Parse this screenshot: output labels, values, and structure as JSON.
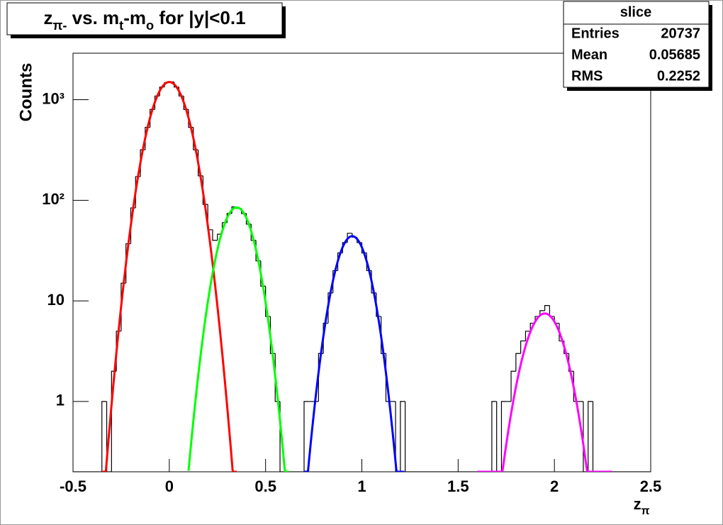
{
  "chart_data": {
    "type": "histogram",
    "title": [
      {
        "text": "z"
      },
      {
        "text": "π-",
        "sub": true
      },
      {
        "text": " vs. m"
      },
      {
        "text": "t",
        "sub": true
      },
      {
        "text": "-m"
      },
      {
        "text": "o",
        "sub": true
      },
      {
        "text": " for |y|<0.1"
      }
    ],
    "x_label": [
      {
        "text": "z"
      },
      {
        "text": "π",
        "sub": true
      }
    ],
    "y_label": "Counts",
    "log_y": true,
    "color": "#000000",
    "xlim": [
      -0.5,
      2.5
    ],
    "xticks": [
      -0.5,
      0,
      0.5,
      1,
      1.5,
      2,
      2.5
    ],
    "ylim": [
      0.2,
      2900
    ],
    "yticks": [
      1,
      10,
      {
        "value": 100,
        "label": "10²"
      },
      {
        "value": 1000,
        "label": "10³"
      }
    ],
    "bins": [
      -0.5,
      -0.475,
      -0.45,
      -0.425,
      -0.4,
      -0.375,
      -0.35,
      -0.325,
      -0.3,
      -0.275,
      -0.25,
      -0.225,
      -0.2,
      -0.175,
      -0.15,
      -0.125,
      -0.1,
      -0.075,
      -0.05,
      -0.025,
      0,
      0.025,
      0.05,
      0.075,
      0.1,
      0.125,
      0.15,
      0.175,
      0.2,
      0.225,
      0.25,
      0.275,
      0.3,
      0.325,
      0.35,
      0.375,
      0.4,
      0.425,
      0.45,
      0.475,
      0.5,
      0.525,
      0.55,
      0.575,
      0.6,
      0.625,
      0.65,
      0.675,
      0.7,
      0.725,
      0.75,
      0.775,
      0.8,
      0.825,
      0.85,
      0.875,
      0.9,
      0.925,
      0.95,
      0.975,
      1,
      1.025,
      1.05,
      1.075,
      1.1,
      1.125,
      1.15,
      1.175,
      1.2,
      1.225,
      1.25,
      1.275,
      1.3,
      1.325,
      1.35,
      1.375,
      1.4,
      1.425,
      1.45,
      1.475,
      1.5,
      1.525,
      1.55,
      1.575,
      1.6,
      1.625,
      1.65,
      1.675,
      1.7,
      1.725,
      1.75,
      1.775,
      1.8,
      1.825,
      1.85,
      1.875,
      1.9,
      1.925,
      1.95,
      1.975,
      2,
      2.025,
      2.05,
      2.075,
      2.1,
      2.125,
      2.15,
      2.175,
      2.2,
      2.225,
      2.25,
      2.275,
      2.3,
      2.325,
      2.35,
      2.375,
      2.4,
      2.425,
      2.45,
      2.475,
      2.5
    ],
    "values": [
      0,
      0,
      0,
      0,
      0,
      0,
      1,
      0,
      2,
      5,
      15,
      37,
      84,
      172,
      318,
      531,
      801,
      1089,
      1337,
      1481,
      1502,
      1337,
      1089,
      801,
      531,
      318,
      175,
      91,
      51,
      40,
      46,
      60,
      74,
      86,
      83,
      74,
      58,
      40,
      25,
      14,
      7,
      3,
      1,
      0,
      0,
      0,
      0,
      0,
      1,
      1,
      1,
      3,
      6,
      12,
      20,
      30,
      38,
      47,
      43,
      38,
      30,
      20,
      12,
      7,
      3,
      1,
      1,
      0,
      1,
      0,
      0,
      0,
      0,
      0,
      0,
      0,
      0,
      0,
      0,
      0,
      0,
      0,
      0,
      0,
      0,
      0,
      0,
      1,
      0,
      1,
      1,
      2,
      3,
      4,
      5,
      6,
      7,
      8,
      9,
      7,
      6,
      4,
      3,
      2,
      1,
      1,
      0,
      1,
      0,
      0,
      0,
      0,
      0,
      0,
      0,
      0,
      0,
      0,
      0,
      0
    ],
    "fits": [
      {
        "color": "#ff0000",
        "constant": 1500,
        "mean": 0,
        "sigma": 0.078,
        "range": [
          -0.35,
          0.35
        ]
      },
      {
        "color": "#00ff00",
        "constant": 85,
        "mean": 0.35,
        "sigma": 0.072,
        "range": [
          0.1,
          0.62
        ]
      },
      {
        "color": "#0000ff",
        "constant": 44,
        "mean": 0.95,
        "sigma": 0.07,
        "range": [
          0.7,
          1.22
        ]
      },
      {
        "color": "#ff00ff",
        "constant": 7.5,
        "mean": 1.95,
        "sigma": 0.0817,
        "range": [
          1.6,
          2.3
        ]
      }
    ],
    "stats": {
      "title": "slice",
      "rows": [
        {
          "label": "Entries",
          "value": 20737
        },
        {
          "label": "Mean",
          "value": 0.05685
        },
        {
          "label": "RMS",
          "value": 0.2252
        }
      ]
    }
  }
}
